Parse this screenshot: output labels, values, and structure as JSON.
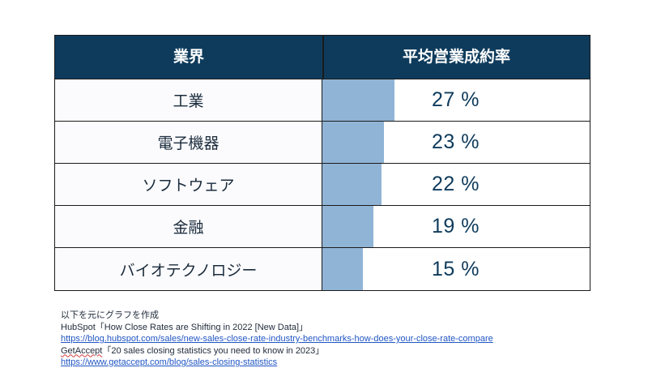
{
  "chart_data": {
    "type": "table",
    "columns": [
      "業界",
      "平均営業成約率"
    ],
    "rows": [
      {
        "label": "工業",
        "value": 27,
        "display": "27 %"
      },
      {
        "label": "電子機器",
        "value": 23,
        "display": "23 %"
      },
      {
        "label": "ソフトウェア",
        "value": 22,
        "display": "22 %"
      },
      {
        "label": "金融",
        "value": 19,
        "display": "19 %"
      },
      {
        "label": "バイオテクノロジー",
        "value": 15,
        "display": "15 %"
      }
    ],
    "unit": "%",
    "bar_color": "#90b4d6"
  },
  "colors": {
    "header_bg": "#0e3b5c",
    "header_text": "#ffffff",
    "value_text": "#0e3b5c",
    "link": "#2156c4"
  },
  "notes": {
    "intro": "以下を元にグラフを作成",
    "source1_title": "HubSpot「How Close Rates are Shifting in 2022 [New Data]」",
    "source1_url": "https://blog.hubspot.com/sales/new-sales-close-rate-industry-benchmarks-how-does-your-close-rate-compare",
    "source2_brand": "GetAccept",
    "source2_title": "「20 sales closing statistics you need to know in 2023」",
    "source2_url": "https://www.getaccept.com/blog/sales-closing-statistics"
  }
}
